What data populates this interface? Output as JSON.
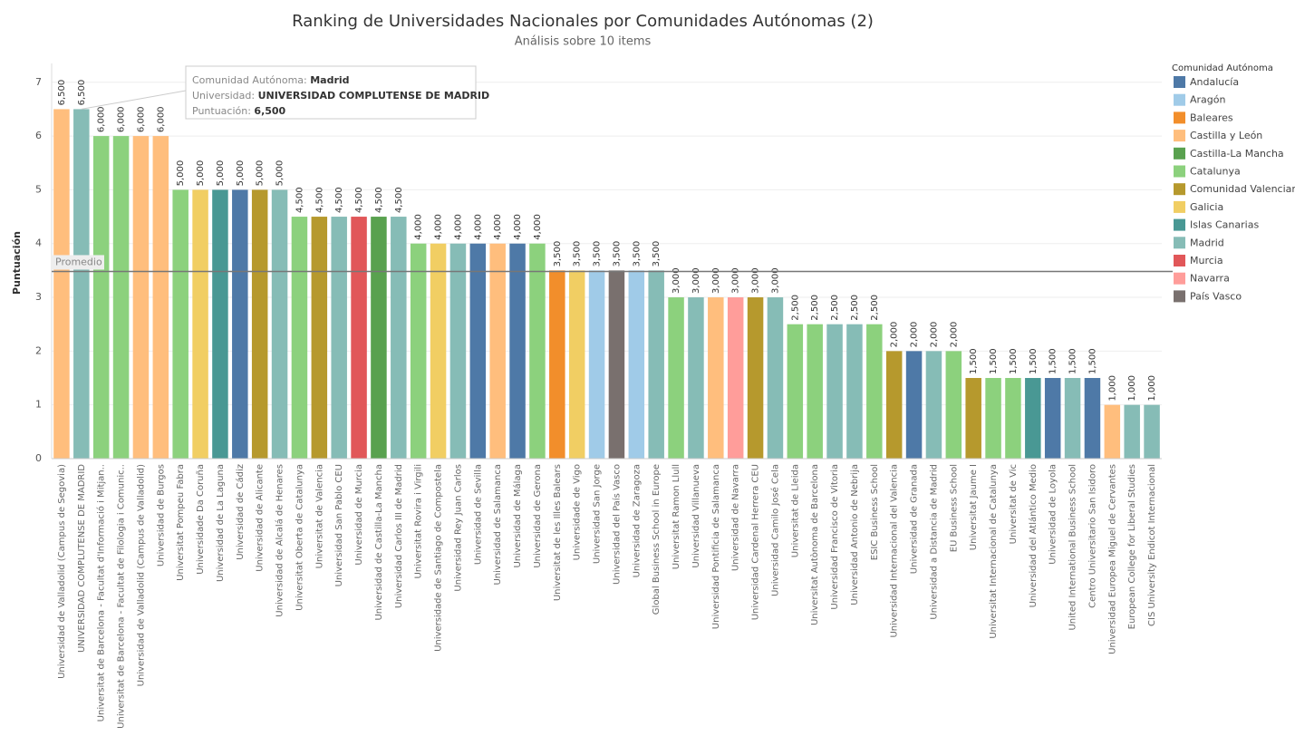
{
  "chart_data": {
    "type": "bar",
    "title": "Ranking de Universidades Nacionales por Comunidades Autónomas (2)",
    "subtitle": "Análisis sobre 10 items",
    "y_label": "Puntuación",
    "categories": [
      "Universidad de Valladolid (Campus de Segovia)",
      "UNIVERSIDAD COMPLUTENSE DE MADRID",
      "Universitat de Barcelona - Facultat d'Informació i Mitjan..",
      "Universitat de Barcelona - Facultat de Filologia i Comunic..",
      "Universidad de Valladolid (Campus de Valladolid)",
      "Universidad de Burgos",
      "Universitat Pompeu Fabra",
      "Universidade Da Coruña",
      "Universidad de La Laguna",
      "Universidad de Cádiz",
      "Universidad de Alicante",
      "Universidad de Alcalá de Henares",
      "Universitat Oberta de Catalunya",
      "Universitat de Valencia",
      "Universidad San Pablo CEU",
      "Universidad de Murcia",
      "Universidad de Castilla-La Mancha",
      "Universidad Carlos III de Madrid",
      "Universitat Rovira i Virgili",
      "Universidade de Santiago de Compostela",
      "Universidad Rey Juan Carlos",
      "Universidad de Sevilla",
      "Universidad de Salamanca",
      "Universidad de Málaga",
      "Universidad de Gerona",
      "Universitat de les Illes Balears",
      "Universidade de Vigo",
      "Universidad San Jorge",
      "Universidad del País Vasco",
      "Universidad de Zaragoza",
      "Global Business School in Europe",
      "Universitat Ramon Llull",
      "Universidad Villanueva",
      "Universidad Pontificia de Salamanca",
      "Universidad de Navarra",
      "Universidad Cardenal Herrera CEU",
      "Universidad Camilo José Cela",
      "Universitat de Lleida",
      "Universitat Autònoma de Barcelona",
      "Universidad Francisco de Vitoria",
      "Universidad Antonio de Nebrija",
      "ESIC Business School",
      "Universidad Internacional del Valencia",
      "Universidad de Granada",
      "Universidad a Distancia de Madrid",
      "EU Business School",
      "Universitat Jaume I",
      "Universitat Internacional de Catalunya",
      "Universitat de Vic",
      "Universidad del Atlántico Medio",
      "Universidad de Loyola",
      "United International Business School",
      "Centro Universitario San Isidoro",
      "Universidad Europea Miguel de Cervantes",
      "European College for Liberal Studies",
      "CIS University Endicot Internacional"
    ],
    "values": [
      6.5,
      6.5,
      6,
      6,
      6,
      6,
      5,
      5,
      5,
      5,
      5,
      5,
      4.5,
      4.5,
      4.5,
      4.5,
      4.5,
      4.5,
      4,
      4,
      4,
      4,
      4,
      4,
      4,
      3.5,
      3.5,
      3.5,
      3.5,
      3.5,
      3.5,
      3,
      3,
      3,
      3,
      3,
      3,
      2.5,
      2.5,
      2.5,
      2.5,
      2.5,
      2,
      2,
      2,
      2,
      1.5,
      1.5,
      1.5,
      1.5,
      1.5,
      1.5,
      1.5,
      1,
      1,
      1
    ],
    "value_labels": [
      "6,500",
      "6,500",
      "6,000",
      "6,000",
      "6,000",
      "6,000",
      "5,000",
      "5,000",
      "5,000",
      "5,000",
      "5,000",
      "5,000",
      "4,500",
      "4,500",
      "4,500",
      "4,500",
      "4,500",
      "4,500",
      "4,000",
      "4,000",
      "4,000",
      "4,000",
      "4,000",
      "4,000",
      "4,000",
      "3,500",
      "3,500",
      "3,500",
      "3,500",
      "3,500",
      "3,500",
      "3,000",
      "3,000",
      "3,000",
      "3,000",
      "3,000",
      "3,000",
      "2,500",
      "2,500",
      "2,500",
      "2,500",
      "2,500",
      "2,000",
      "2,000",
      "2,000",
      "2,000",
      "1,500",
      "1,500",
      "1,500",
      "1,500",
      "1,500",
      "1,500",
      "1,500",
      "1,000",
      "1,000",
      "1,000"
    ],
    "bar_colors": [
      "#ffbe7d",
      "#86bcb6",
      "#8cd17d",
      "#8cd17d",
      "#ffbe7d",
      "#ffbe7d",
      "#8cd17d",
      "#f1ce63",
      "#499894",
      "#4e79a7",
      "#b6992d",
      "#86bcb6",
      "#8cd17d",
      "#b6992d",
      "#86bcb6",
      "#e15759",
      "#59a14f",
      "#86bcb6",
      "#8cd17d",
      "#f1ce63",
      "#86bcb6",
      "#4e79a7",
      "#ffbe7d",
      "#4e79a7",
      "#8cd17d",
      "#f28e2b",
      "#f1ce63",
      "#a0cbe8",
      "#79706e",
      "#a0cbe8",
      "#86bcb6",
      "#8cd17d",
      "#86bcb6",
      "#ffbe7d",
      "#ff9d9a",
      "#b6992d",
      "#86bcb6",
      "#8cd17d",
      "#8cd17d",
      "#86bcb6",
      "#86bcb6",
      "#8cd17d",
      "#b6992d",
      "#4e79a7",
      "#86bcb6",
      "#8cd17d",
      "#b6992d",
      "#8cd17d",
      "#8cd17d",
      "#499894",
      "#4e79a7",
      "#86bcb6",
      "#4e79a7",
      "#ffbe7d",
      "#86bcb6",
      "#86bcb6"
    ],
    "legend_title": "Comunidad Autónoma",
    "legend": [
      {
        "name": "Andalucía",
        "color": "#4e79a7"
      },
      {
        "name": "Aragón",
        "color": "#a0cbe8"
      },
      {
        "name": "Baleares",
        "color": "#f28e2b"
      },
      {
        "name": "Castilla y León",
        "color": "#ffbe7d"
      },
      {
        "name": "Castilla-La Mancha",
        "color": "#59a14f"
      },
      {
        "name": "Catalunya",
        "color": "#8cd17d"
      },
      {
        "name": "Comunidad Valenciana",
        "color": "#b6992d"
      },
      {
        "name": "Galicia",
        "color": "#f1ce63"
      },
      {
        "name": "Islas Canarias",
        "color": "#499894"
      },
      {
        "name": "Madrid",
        "color": "#86bcb6"
      },
      {
        "name": "Murcia",
        "color": "#e15759"
      },
      {
        "name": "Navarra",
        "color": "#ff9d9a"
      },
      {
        "name": "País Vasco",
        "color": "#79706e"
      }
    ],
    "legend_position": "right",
    "average_line": {
      "label": "Promedio",
      "value": 3.482
    },
    "tooltip": [
      {
        "label": "Comunidad Autónoma:",
        "value": "Madrid"
      },
      {
        "label": "Universidad:",
        "value": "UNIVERSIDAD COMPLUTENSE DE MADRID"
      },
      {
        "label": "Puntuación:",
        "value": "6,500"
      }
    ],
    "ylim": [
      0,
      7.35
    ],
    "yticks": [
      0,
      1,
      2,
      3,
      4,
      5,
      6,
      7
    ],
    "grid": true
  }
}
